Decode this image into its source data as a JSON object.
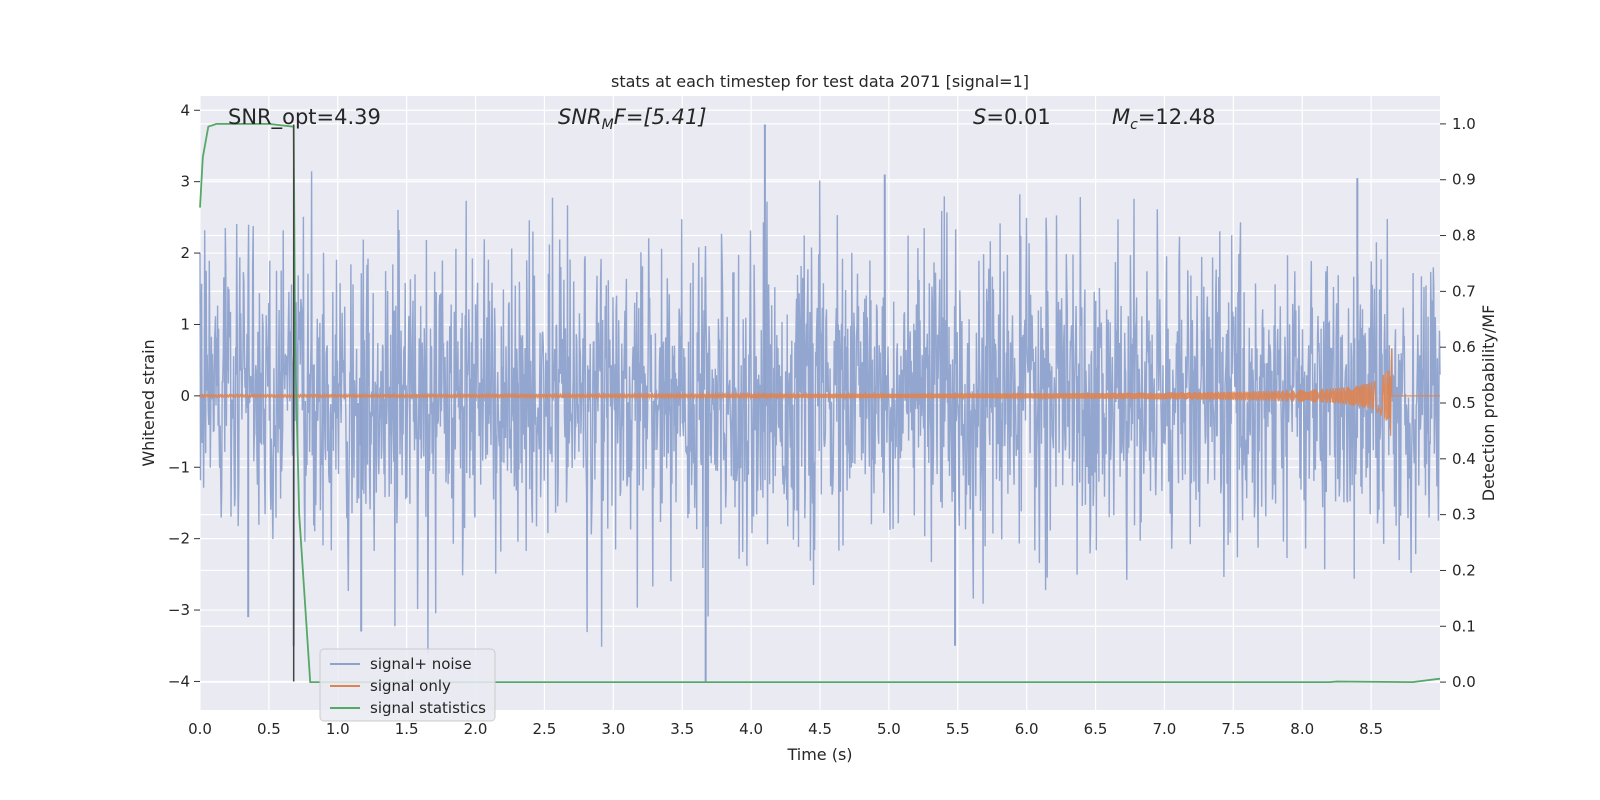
{
  "chart_data": {
    "type": "line",
    "title": "stats at each timestep for test data 2071 [signal=1]",
    "xlabel": "Time (s)",
    "ylabel_left": "Whitened strain",
    "ylabel_right": "Detection probability/MF",
    "xlim": [
      0.0,
      9.0
    ],
    "ylim_left": [
      -4.4,
      4.2
    ],
    "ylim_right": [
      -0.05,
      1.05
    ],
    "xticks": [
      "0.0",
      "0.5",
      "1.0",
      "1.5",
      "2.0",
      "2.5",
      "3.0",
      "3.5",
      "4.0",
      "4.5",
      "5.0",
      "5.5",
      "6.0",
      "6.5",
      "7.0",
      "7.5",
      "8.0",
      "8.5"
    ],
    "yticks_left": [
      "4",
      "3",
      "2",
      "1",
      "0",
      "−1",
      "−2",
      "−3",
      "−4"
    ],
    "yticks_right": [
      "1.0",
      "0.9",
      "0.8",
      "0.7",
      "0.6",
      "0.5",
      "0.4",
      "0.3",
      "0.2",
      "0.1",
      "0.0"
    ],
    "grid": true,
    "legend_position": "lower-left",
    "annotations": {
      "snr_opt": "SNR_opt=4.39",
      "snr_mf_sym": "SNR",
      "snr_mf_sub": "M",
      "snr_mf_rest": "F=[5.41]",
      "s_sym": "S",
      "s_rest": "=0.01",
      "mc_sym": "M",
      "mc_sub": "c",
      "mc_rest": "=12.48"
    },
    "series": [
      {
        "name": "signal+ noise",
        "color": "#8ea2cc",
        "axis": "left",
        "description_values": {
          "approx_range": [
            -4.0,
            3.8
          ],
          "std": 1.0
        },
        "peaks": [
          {
            "x": 4.1,
            "y": 3.8
          },
          {
            "x": 3.67,
            "y": -4.0
          },
          {
            "x": 5.48,
            "y": -3.5
          },
          {
            "x": 0.68,
            "y": -3.5
          },
          {
            "x": 1.17,
            "y": -3.3
          },
          {
            "x": 0.35,
            "y": -3.1
          },
          {
            "x": 4.97,
            "y": 3.1
          },
          {
            "x": 8.4,
            "y": 3.05
          }
        ]
      },
      {
        "name": "signal only",
        "color": "#dd8452",
        "axis": "left",
        "chirp_end": 8.65,
        "max_amplitude": 0.7
      },
      {
        "name": "signal statistics",
        "color": "#55a868",
        "axis": "right",
        "x": [
          0.0,
          0.02,
          0.06,
          0.12,
          0.5,
          0.68,
          0.69,
          0.72,
          0.8,
          8.2,
          8.25,
          8.8,
          9.0
        ],
        "y": [
          0.85,
          0.94,
          0.995,
          1.0,
          1.0,
          0.995,
          0.6,
          0.3,
          0.0,
          0.0,
          0.001,
          0.0,
          0.006
        ]
      }
    ],
    "vline": {
      "x": 0.68,
      "color": "#444444"
    }
  }
}
